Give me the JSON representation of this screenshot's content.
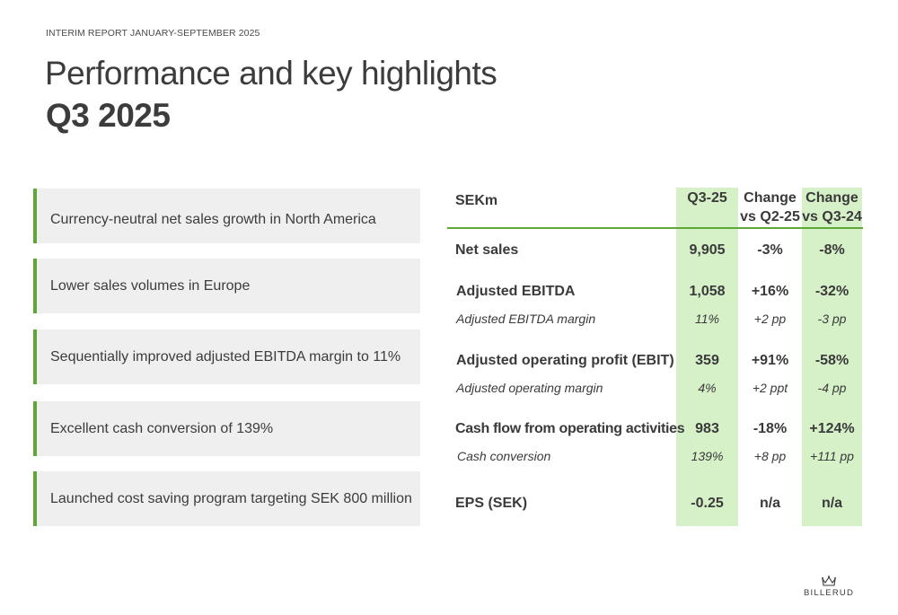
{
  "header": {
    "kicker": "INTERIM REPORT JANUARY-SEPTEMBER 2025",
    "title": "Performance and key highlights",
    "subtitle": "Q3 2025"
  },
  "highlights": [
    "Currency-neutral net sales growth in North America",
    "Lower sales volumes in Europe",
    "Sequentially improved adjusted EBITDA margin to 11%",
    "Excellent cash conversion of 139%",
    "Launched cost saving program targeting SEK 800 million"
  ],
  "table": {
    "unit": "SEKm",
    "col_q3": "Q3-25",
    "col_q2_a": "Change",
    "col_q2_b": "vs Q2-25",
    "col_q3y_a": "Change",
    "col_q3y_b": "vs Q3-24",
    "rows": [
      {
        "label": "Net sales",
        "q3": "9,905",
        "vq2": "-3%",
        "vq3": "-8%"
      },
      {
        "label": "Adjusted EBITDA",
        "q3": "1,058",
        "vq2": "+16%",
        "vq3": "-32%"
      },
      {
        "label": "Adjusted EBITDA margin",
        "q3": "11%",
        "vq2": "+2 pp",
        "vq3": "-3 pp"
      },
      {
        "label": "Adjusted operating profit (EBIT)",
        "q3": "359",
        "vq2": "+91%",
        "vq3": "-58%"
      },
      {
        "label": "Adjusted operating margin",
        "q3": "4%",
        "vq2": "+2 ppt",
        "vq3": "-4 pp"
      },
      {
        "label": "Cash flow from operating activities",
        "q3": "983",
        "vq2": "-18%",
        "vq3": "+124%"
      },
      {
        "label": "Cash conversion",
        "q3": "139%",
        "vq2": "+8 pp",
        "vq3": "+111 pp"
      },
      {
        "label": "EPS (SEK)",
        "q3": "-0.25",
        "vq2": "n/a",
        "vq3": "n/a"
      }
    ]
  },
  "logo": {
    "text": "BILLERUD"
  },
  "colors": {
    "accent": "#5ea83a",
    "highlight_col": "#d6f0c8",
    "panel": "#efefef"
  }
}
